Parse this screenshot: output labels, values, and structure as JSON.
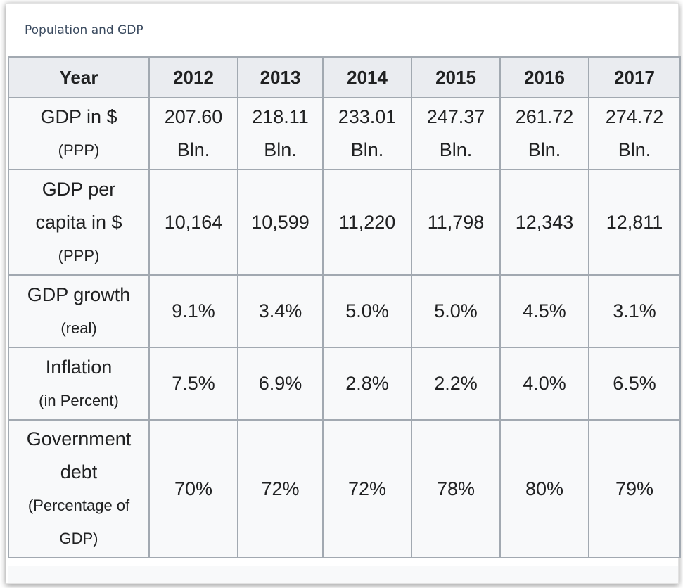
{
  "caption": "Population and GDP",
  "header": {
    "year_label": "Year",
    "years": [
      "2012",
      "2013",
      "2014",
      "2015",
      "2016",
      "2017"
    ]
  },
  "rows": [
    {
      "label_lines": [
        "GDP in $"
      ],
      "sub_lines": [
        "(PPP)"
      ],
      "values": [
        {
          "num": "207.60",
          "unit": "Bln."
        },
        {
          "num": "218.11",
          "unit": "Bln."
        },
        {
          "num": "233.01",
          "unit": "Bln."
        },
        {
          "num": "247.37",
          "unit": "Bln."
        },
        {
          "num": "261.72",
          "unit": "Bln."
        },
        {
          "num": "274.72",
          "unit": "Bln."
        }
      ]
    },
    {
      "label_lines": [
        "GDP per",
        "capita in $"
      ],
      "sub_lines": [
        "(PPP)"
      ],
      "values": [
        {
          "num": "10,164"
        },
        {
          "num": "10,599"
        },
        {
          "num": "11,220"
        },
        {
          "num": "11,798"
        },
        {
          "num": "12,343"
        },
        {
          "num": "12,811"
        }
      ]
    },
    {
      "label_lines": [
        "GDP growth"
      ],
      "sub_lines": [
        "(real)"
      ],
      "values": [
        {
          "num": "9.1%"
        },
        {
          "num": "3.4%"
        },
        {
          "num": "5.0%"
        },
        {
          "num": "5.0%"
        },
        {
          "num": "4.5%"
        },
        {
          "num": "3.1%"
        }
      ]
    },
    {
      "label_lines": [
        "Inflation"
      ],
      "sub_lines": [
        "(in Percent)"
      ],
      "values": [
        {
          "num": "7.5%"
        },
        {
          "num": "6.9%"
        },
        {
          "num": "2.8%"
        },
        {
          "num": "2.2%"
        },
        {
          "num": "4.0%"
        },
        {
          "num": "6.5%"
        }
      ]
    },
    {
      "label_lines": [
        "Government",
        "debt"
      ],
      "sub_lines": [
        "(Percentage of",
        "GDP)"
      ],
      "values": [
        {
          "num": "70%"
        },
        {
          "num": "72%"
        },
        {
          "num": "72%"
        },
        {
          "num": "78%"
        },
        {
          "num": "80%"
        },
        {
          "num": "79%"
        }
      ]
    }
  ],
  "colors": {
    "header_bg": "#eaecf0",
    "cell_bg": "#f8f9fa",
    "border": "#a2a9b1",
    "text": "#202122",
    "caption_text": "#3a4a5f"
  }
}
